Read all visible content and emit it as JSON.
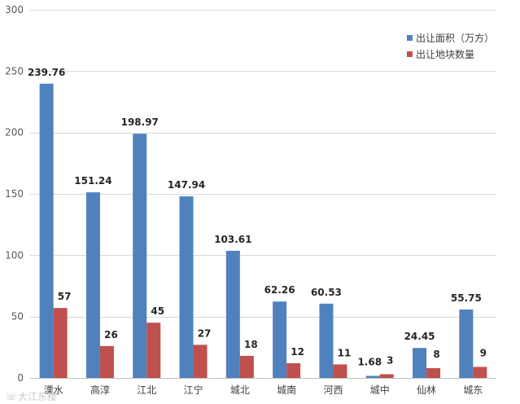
{
  "chart_data": {
    "type": "bar",
    "title": "",
    "xlabel": "",
    "ylabel": "",
    "ylim": [
      0,
      300
    ],
    "yticks": [
      0,
      50,
      100,
      150,
      200,
      250,
      300
    ],
    "grid": true,
    "legend_position": "top-right",
    "categories": [
      "溧水",
      "高淳",
      "江北",
      "江宁",
      "城北",
      "城南",
      "河西",
      "城中",
      "仙林",
      "城东"
    ],
    "series": [
      {
        "name": "出让面积（万方）",
        "color": "#4f81bd",
        "values": [
          239.76,
          151.24,
          198.97,
          147.94,
          103.61,
          62.26,
          60.53,
          1.68,
          24.45,
          55.75
        ],
        "labels": [
          "239.76",
          "151.24",
          "198.97",
          "147.94",
          "103.61",
          "62.26",
          "60.53",
          "1.68",
          "24.45",
          "55.75"
        ]
      },
      {
        "name": "出让地块数量",
        "color": "#c0504d",
        "values": [
          57,
          26,
          45,
          27,
          18,
          12,
          11,
          3,
          8,
          9
        ],
        "labels": [
          "57",
          "26",
          "45",
          "27",
          "18",
          "12",
          "11",
          "3",
          "8",
          "9"
        ]
      }
    ]
  },
  "watermark": "大江东楼"
}
